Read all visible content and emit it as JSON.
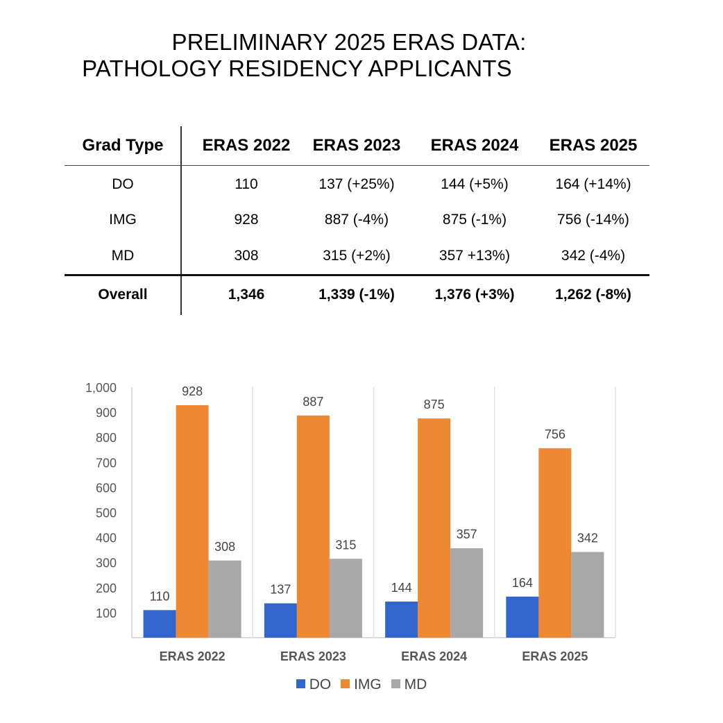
{
  "title": {
    "line1": "PRELIMINARY 2025 ERAS DATA:",
    "line2": "PATHOLOGY RESIDENCY APPLICANTS"
  },
  "table": {
    "headers": [
      "Grad Type",
      "ERAS 2022",
      "ERAS 2023",
      "ERAS 2024",
      "ERAS 2025"
    ],
    "rows": [
      [
        "DO",
        "110",
        "137 (+25%)",
        "144 (+5%)",
        "164 (+14%)"
      ],
      [
        "IMG",
        "928",
        "887 (-4%)",
        "875 (-1%)",
        "756 (-14%)"
      ],
      [
        "MD",
        "308",
        "315 (+2%)",
        "357 +13%)",
        "342 (-4%)"
      ]
    ],
    "total": [
      "Overall",
      "1,346",
      "1,339 (-1%)",
      "1,376 (+3%)",
      "1,262 (-8%)"
    ]
  },
  "chart_data": {
    "type": "bar",
    "categories": [
      "ERAS 2022",
      "ERAS 2023",
      "ERAS 2024",
      "ERAS 2025"
    ],
    "series": [
      {
        "name": "DO",
        "values": [
          110,
          137,
          144,
          164
        ],
        "color": "#3366cc"
      },
      {
        "name": "IMG",
        "values": [
          928,
          887,
          875,
          756
        ],
        "color": "#ee8833"
      },
      {
        "name": "MD",
        "values": [
          308,
          315,
          357,
          342
        ],
        "color": "#a8a8a8"
      }
    ],
    "yticks": [
      "100",
      "200",
      "300",
      "400",
      "500",
      "600",
      "700",
      "800",
      "900",
      "1,000"
    ],
    "ylim": [
      0,
      1000
    ],
    "legend": "bottom",
    "grid": false
  }
}
